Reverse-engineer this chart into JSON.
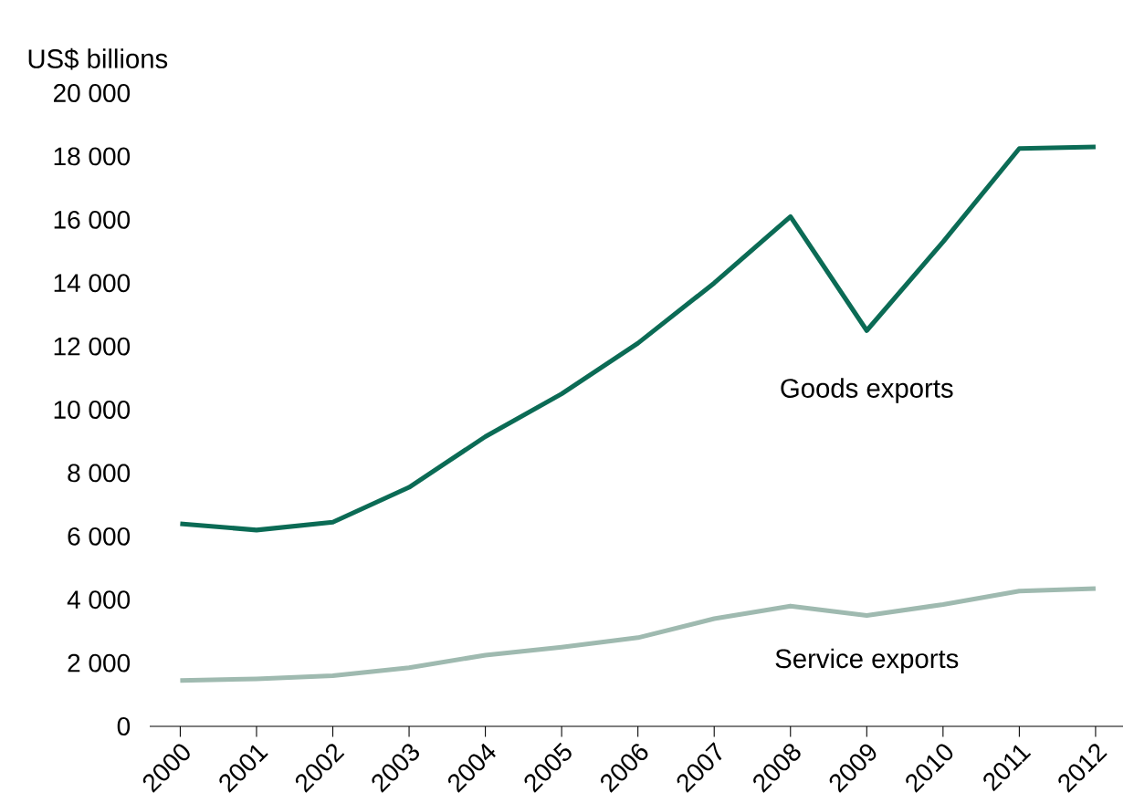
{
  "chart_data": {
    "type": "line",
    "ylabel": "US$ billions",
    "categories": [
      "2000",
      "2001",
      "2002",
      "2003",
      "2004",
      "2005",
      "2006",
      "2007",
      "2008",
      "2009",
      "2010",
      "2011",
      "2012"
    ],
    "ylim": [
      0,
      20000
    ],
    "yticks": [
      0,
      {
        "value": 2000,
        "label": "2 000"
      },
      {
        "value": 4000,
        "label": "4 000"
      },
      {
        "value": 6000,
        "label": "6 000"
      },
      {
        "value": 8000,
        "label": "8 000"
      },
      {
        "value": 10000,
        "label": "10 000"
      },
      {
        "value": 12000,
        "label": "12 000"
      },
      {
        "value": 14000,
        "label": "14 000"
      },
      {
        "value": 16000,
        "label": "16 000"
      },
      {
        "value": 18000,
        "label": "18 000"
      },
      {
        "value": 20000,
        "label": "20 000"
      }
    ],
    "series": [
      {
        "name": "Goods exports",
        "color": "#0b6b55",
        "values": [
          6400,
          6200,
          6450,
          7550,
          9150,
          10500,
          12100,
          14000,
          16100,
          12500,
          15300,
          18250,
          18300
        ]
      },
      {
        "name": "Service exports",
        "color": "#9fbab0",
        "values": [
          1450,
          1500,
          1600,
          1850,
          2250,
          2500,
          2800,
          3400,
          3800,
          3500,
          3850,
          4270,
          4350
        ]
      }
    ]
  }
}
